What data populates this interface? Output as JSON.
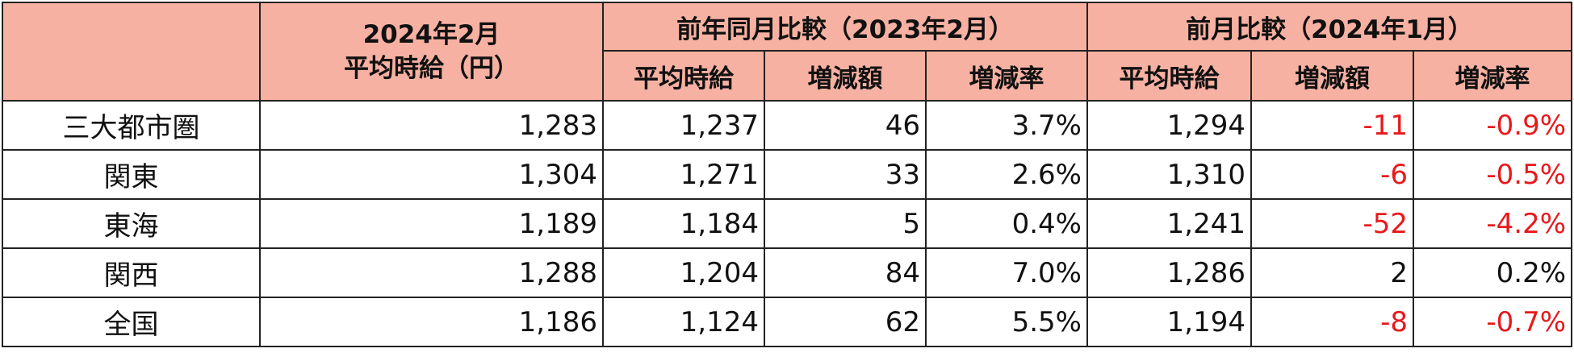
{
  "table": {
    "header": {
      "title_lines": [
        "2024年2月",
        "平均時給（円）"
      ],
      "groups": [
        "前年同月比較（2023年2月）",
        "前月比較（2024年1月）"
      ],
      "subheaders": [
        "平均時給",
        "増減額",
        "増減率",
        "平均時給",
        "増減額",
        "増減率"
      ]
    },
    "rows": [
      [
        "三大都市圏",
        "1,283",
        "1,237",
        "46",
        "3.7%",
        "1,294",
        "-11",
        "-0.9%"
      ],
      [
        "関東",
        "1,304",
        "1,271",
        "33",
        "2.6%",
        "1,310",
        "-6",
        "-0.5%"
      ],
      [
        "東海",
        "1,189",
        "1,184",
        "5",
        "0.4%",
        "1,241",
        "-52",
        "-4.2%"
      ],
      [
        "関西",
        "1,288",
        "1,204",
        "84",
        "7.0%",
        "1,286",
        "2",
        "0.2%"
      ],
      [
        "全国",
        "1,186",
        "1,124",
        "62",
        "5.5%",
        "1,194",
        "-8",
        "-0.7%"
      ]
    ]
  }
}
